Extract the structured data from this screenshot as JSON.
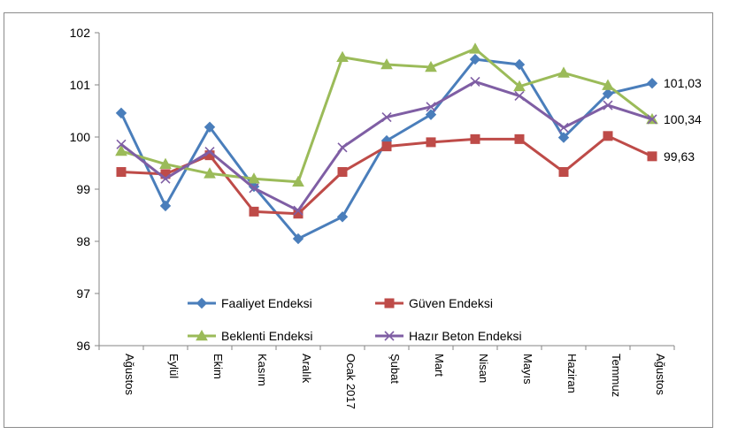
{
  "chart_data": {
    "type": "line",
    "categories": [
      "Ağustos",
      "Eylül",
      "Ekim",
      "Kasım",
      "Aralık",
      "Ocak 2017",
      "Şubat",
      "Mart",
      "Nisan",
      "Mayıs",
      "Haziran",
      "Temmuz",
      "Ağustos"
    ],
    "ylim": [
      96,
      102
    ],
    "yticks": [
      "96",
      "97",
      "98",
      "99",
      "100",
      "101",
      "102"
    ],
    "grid": false,
    "legend_position": "bottom-inside",
    "series": [
      {
        "name": "Faaliyet Endeksi",
        "color": "#4a7ebb",
        "marker": "diamond",
        "values": [
          100.46,
          98.68,
          100.19,
          99.05,
          98.05,
          98.47,
          99.93,
          100.43,
          101.49,
          101.39,
          99.99,
          100.83,
          101.03
        ],
        "end_label": "101,03"
      },
      {
        "name": "Güven Endeksi",
        "color": "#be4b48",
        "marker": "square",
        "values": [
          99.33,
          99.29,
          99.65,
          98.57,
          98.53,
          99.33,
          99.82,
          99.9,
          99.96,
          99.96,
          99.33,
          100.02,
          99.63
        ],
        "end_label": "99,63"
      },
      {
        "name": "Beklenti Endeksi",
        "color": "#9bbb59",
        "marker": "triangle",
        "values": [
          99.73,
          99.48,
          99.3,
          99.2,
          99.14,
          101.53,
          101.39,
          101.34,
          101.69,
          100.97,
          101.23,
          100.99,
          100.34
        ],
        "end_label": "100,34"
      },
      {
        "name": "Hazır Beton Endeksi",
        "color": "#7f5ea4",
        "marker": "x",
        "values": [
          99.86,
          99.2,
          99.72,
          99.02,
          98.59,
          99.8,
          100.38,
          100.58,
          101.06,
          100.79,
          100.18,
          100.61,
          100.34
        ],
        "end_label": ""
      }
    ]
  }
}
